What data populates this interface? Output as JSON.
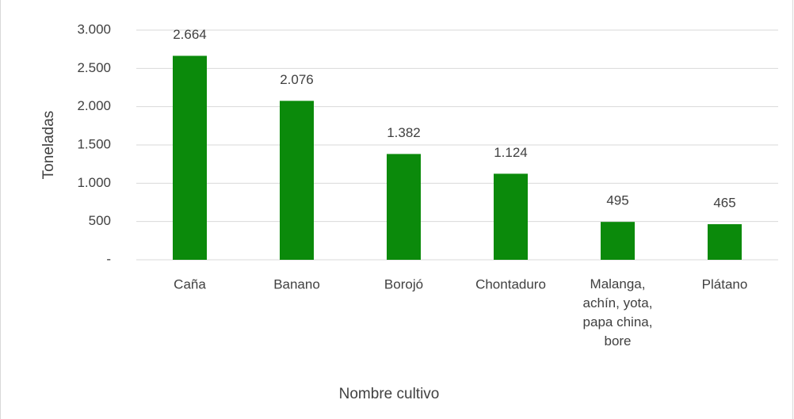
{
  "chart_data": {
    "type": "bar",
    "x_label": "Nombre cultivo",
    "y_label": "Toneladas",
    "categories": [
      "Caña",
      "Banano",
      "Borojó",
      "Chontaduro",
      "Malanga, achín, yota, papa china, bore",
      "Plátano"
    ],
    "values": [
      2664,
      2076,
      1382,
      1124,
      495,
      465
    ],
    "value_labels": [
      "2.664",
      "2.076",
      "1.382",
      "1.124",
      "495",
      "465"
    ],
    "color": "#0b8a0b",
    "ylim": [
      0,
      3000
    ],
    "yticks": [
      {
        "value": 0,
        "label": "-"
      },
      500,
      {
        "value": 1000,
        "label": "1.000"
      },
      {
        "value": 1500,
        "label": "1.500"
      },
      {
        "value": 2000,
        "label": "2.000"
      },
      {
        "value": 2500,
        "label": "2.500"
      },
      {
        "value": 3000,
        "label": "3.000"
      }
    ],
    "grid": true
  }
}
